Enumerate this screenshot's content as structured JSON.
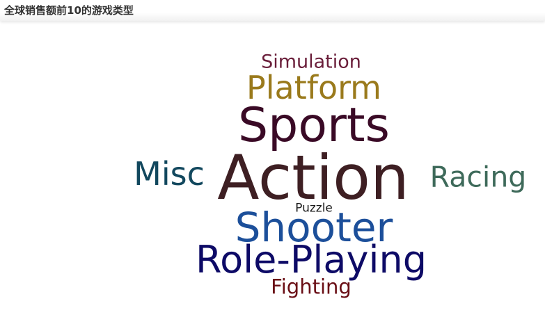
{
  "chart_data": {
    "type": "wordcloud",
    "title": "全球销售额前10的游戏类型",
    "words": [
      {
        "text": "Action",
        "weight": 10,
        "color": "#3e1f23"
      },
      {
        "text": "Sports",
        "weight": 9,
        "color": "#3a0a26"
      },
      {
        "text": "Shooter",
        "weight": 8,
        "color": "#1c4f9a"
      },
      {
        "text": "Role-Playing",
        "weight": 7,
        "color": "#0d0a66"
      },
      {
        "text": "Platform",
        "weight": 6,
        "color": "#9a7a1c"
      },
      {
        "text": "Misc",
        "weight": 5,
        "color": "#12485e"
      },
      {
        "text": "Racing",
        "weight": 4,
        "color": "#3e6a5a"
      },
      {
        "text": "Fighting",
        "weight": 3,
        "color": "#6a0f16"
      },
      {
        "text": "Simulation",
        "weight": 2,
        "color": "#6a1e3a"
      },
      {
        "text": "Puzzle",
        "weight": 1,
        "color": "#1a1a1a"
      }
    ]
  }
}
